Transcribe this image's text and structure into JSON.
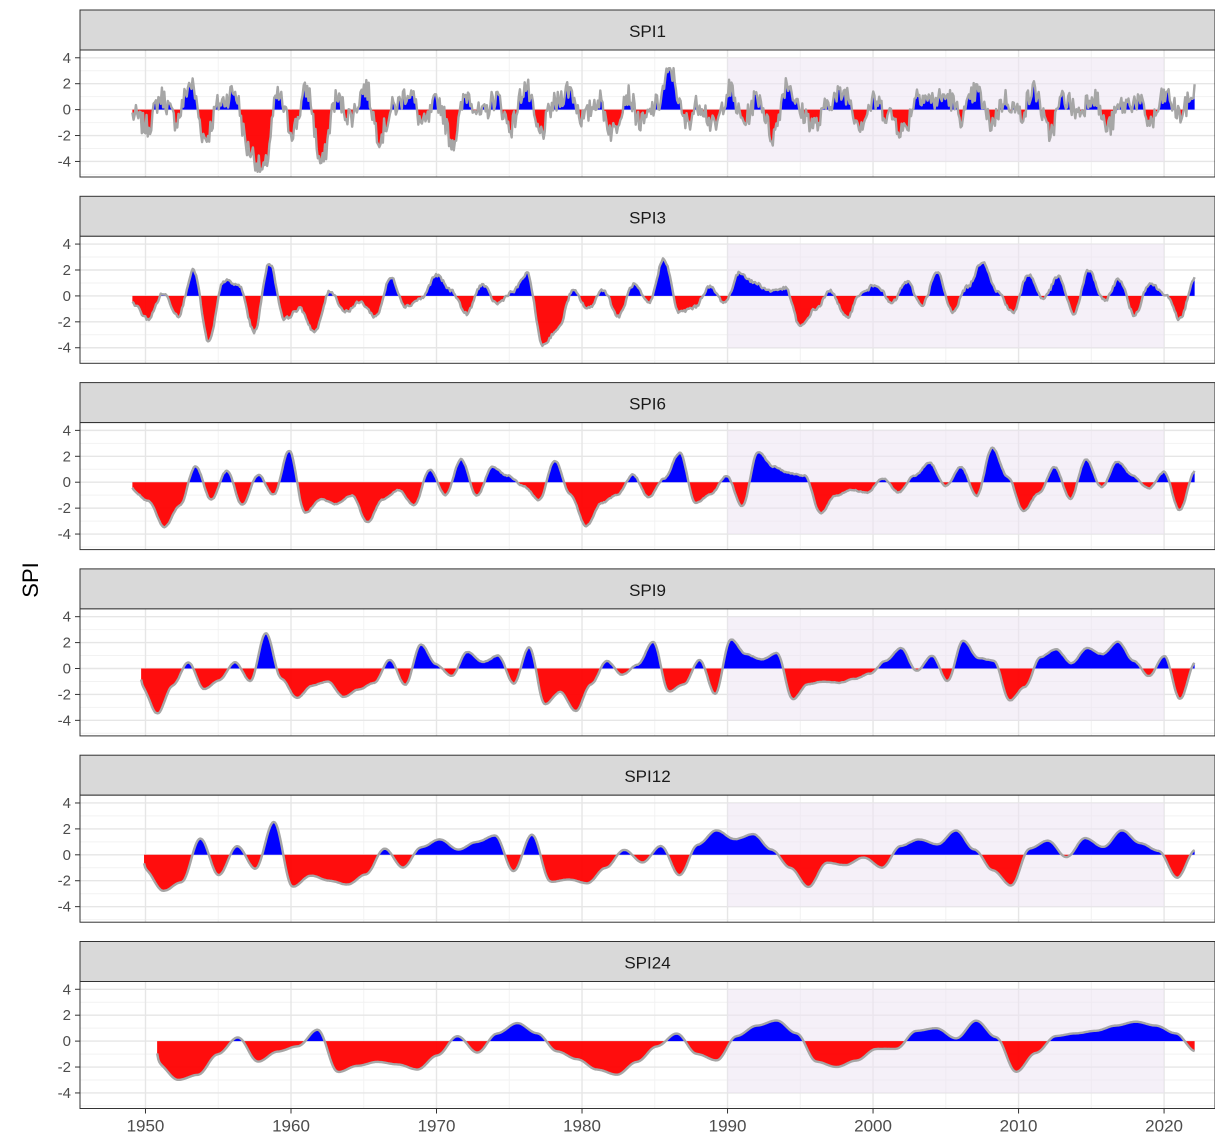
{
  "chart_data": {
    "type": "area",
    "ylabel": "SPI",
    "xlabel": "",
    "xlim": [
      1945.5,
      2023.5
    ],
    "ylim": [
      -5.2,
      4.6
    ],
    "x_ticks": [
      1950,
      1960,
      1970,
      1980,
      1990,
      2000,
      2010,
      2020
    ],
    "x_tick_labels": [
      "1950",
      "1960",
      "1970",
      "1980",
      "1990",
      "2000",
      "2010",
      "2020"
    ],
    "y_ticks": [
      -4,
      -2,
      0,
      2,
      4
    ],
    "y_tick_labels": [
      "-4",
      "-2",
      "0",
      "2",
      "4"
    ],
    "grid": true,
    "highlight_period": {
      "x": [
        1990,
        2020
      ],
      "y": [
        -4,
        4
      ],
      "color": "#ece4f2"
    },
    "colors": {
      "positive": "#0000ff",
      "negative": "#ff0000",
      "line": "#a6a6a6",
      "strip": "#d9d9d9",
      "highlight": "#ece4f2"
    },
    "panels": [
      {
        "name": "SPI1",
        "start": 1949.1,
        "end": 2022.1,
        "values": [
          -0.4,
          -1.3,
          1.0,
          -0.8,
          2.0,
          -2.2,
          0.5,
          1.4,
          -3.1,
          -4.8,
          1.0,
          -1.6,
          1.5,
          -4.2,
          0.8,
          -0.5,
          1.7,
          -2.0,
          0.2,
          1.4,
          -1.2,
          0.6,
          -2.4,
          1.2,
          -0.5,
          0.9,
          -1.3,
          1.8,
          -1.9,
          0.4,
          1.6,
          -0.7,
          0.8,
          -1.7,
          1.2,
          -1.1,
          0.3,
          3.0,
          -1.0,
          0.5,
          -1.4,
          1.5,
          -0.9,
          1.0,
          -2.0,
          2.1,
          -0.3,
          -1.2,
          0.8,
          1.3,
          -1.0,
          0.6,
          -0.4,
          -1.6,
          1.3,
          0.7,
          1.0,
          -0.5,
          1.4,
          -1.0,
          0.8,
          -0.3,
          1.5,
          -1.8,
          0.9,
          -0.2,
          1.2,
          -1.4,
          0.3,
          0.7,
          -1.0,
          1.1,
          -0.4,
          1.3
        ]
      },
      {
        "name": "SPI3",
        "start": 1949.1,
        "end": 2022.1,
        "values": [
          -0.6,
          -1.8,
          0.2,
          -1.5,
          2.0,
          -3.6,
          1.2,
          0.8,
          -2.8,
          2.6,
          -1.8,
          -1.0,
          -2.8,
          0.4,
          -1.2,
          -0.5,
          -1.6,
          1.4,
          -0.8,
          -0.2,
          1.6,
          0.4,
          -1.4,
          0.9,
          -0.6,
          0.3,
          1.7,
          -3.8,
          -2.6,
          0.4,
          -1.0,
          0.5,
          -1.6,
          0.9,
          -0.6,
          2.9,
          -1.3,
          -0.9,
          0.7,
          -0.5,
          1.8,
          1.0,
          0.4,
          0.6,
          -2.4,
          -1.0,
          0.4,
          -1.7,
          0.2,
          0.9,
          -0.6,
          1.1,
          -0.7,
          1.8,
          -1.2,
          0.7,
          2.7,
          0.3,
          -1.3,
          1.7,
          -0.2,
          1.5,
          -1.4,
          2.0,
          -0.4,
          1.3,
          -1.5,
          1.0,
          0.2,
          -1.8,
          1.4
        ]
      },
      {
        "name": "SPI6",
        "start": 1949.1,
        "end": 2022.1,
        "values": [
          -0.7,
          -1.5,
          -3.5,
          -1.8,
          1.3,
          -1.4,
          0.9,
          -1.8,
          0.6,
          -1.0,
          2.5,
          -2.4,
          -1.3,
          -1.7,
          -1.0,
          -3.1,
          -1.3,
          -0.6,
          -1.8,
          1.0,
          -1.0,
          1.8,
          -1.1,
          1.2,
          0.5,
          -0.3,
          -1.4,
          1.7,
          -1.0,
          -3.4,
          -1.6,
          -1.0,
          0.6,
          -1.2,
          0.3,
          2.3,
          -1.6,
          -0.9,
          0.5,
          -1.9,
          2.4,
          1.2,
          0.7,
          0.5,
          -2.4,
          -1.0,
          -0.6,
          -0.8,
          0.3,
          -0.8,
          0.5,
          1.5,
          -0.3,
          1.2,
          -1.1,
          2.7,
          0.4,
          -2.3,
          -0.8,
          1.2,
          -1.3,
          1.8,
          -0.4,
          1.6,
          0.5,
          -0.5,
          0.8,
          -2.2,
          0.9
        ]
      },
      {
        "name": "SPI9",
        "start": 1949.7,
        "end": 2022.1,
        "values": [
          -1.5,
          -3.5,
          -1.3,
          0.5,
          -1.6,
          -0.9,
          0.5,
          -1.0,
          2.8,
          -0.8,
          -2.3,
          -1.3,
          -1.0,
          -2.2,
          -1.6,
          -1.1,
          0.7,
          -1.3,
          1.9,
          0.3,
          -0.6,
          1.3,
          0.5,
          1.0,
          -1.2,
          1.7,
          -2.8,
          -1.8,
          -3.3,
          -1.2,
          0.6,
          -0.5,
          0.3,
          2.1,
          -1.8,
          -1.2,
          0.7,
          -2.0,
          2.3,
          1.1,
          0.7,
          1.2,
          -2.4,
          -1.2,
          -1.0,
          -1.1,
          -0.8,
          -0.4,
          0.6,
          1.6,
          -0.2,
          1.0,
          -1.0,
          2.2,
          0.8,
          0.6,
          -2.5,
          -1.4,
          0.9,
          1.5,
          0.4,
          1.6,
          1.1,
          2.1,
          0.6,
          -0.6,
          1.0,
          -2.4,
          0.5
        ]
      },
      {
        "name": "SPI12",
        "start": 1949.9,
        "end": 2022.1,
        "values": [
          -1.2,
          -2.8,
          -2.1,
          1.3,
          -1.6,
          0.7,
          -1.1,
          2.6,
          -2.5,
          -1.6,
          -2.0,
          -2.3,
          -1.5,
          0.5,
          -1.0,
          0.6,
          1.2,
          0.4,
          1.0,
          1.5,
          -1.3,
          1.6,
          -2.1,
          -1.9,
          -2.2,
          -1.0,
          0.4,
          -0.6,
          0.7,
          -1.6,
          0.8,
          1.9,
          1.2,
          1.6,
          0.4,
          -1.0,
          -2.5,
          -0.6,
          -0.8,
          -0.2,
          -1.0,
          0.7,
          1.2,
          0.8,
          1.9,
          0.4,
          -1.2,
          -2.4,
          0.5,
          1.1,
          -0.2,
          1.3,
          0.6,
          1.9,
          0.9,
          0.3,
          -1.8,
          0.4
        ]
      },
      {
        "name": "SPI24",
        "start": 1950.8,
        "end": 2022.1,
        "values": [
          -1.8,
          -3.0,
          -2.6,
          -1.0,
          0.3,
          -1.6,
          -0.8,
          -0.4,
          0.9,
          -2.4,
          -1.9,
          -1.6,
          -1.8,
          -2.2,
          -1.1,
          0.4,
          -0.9,
          0.6,
          1.4,
          0.6,
          -0.8,
          -1.4,
          -2.2,
          -2.6,
          -1.6,
          -0.4,
          0.6,
          -1.0,
          -1.5,
          0.4,
          1.2,
          1.6,
          0.6,
          -1.6,
          -2.0,
          -1.5,
          -0.6,
          -0.6,
          0.8,
          1.0,
          0.2,
          1.6,
          0.3,
          -2.4,
          -0.9,
          0.4,
          0.6,
          0.8,
          1.2,
          1.5,
          1.2,
          0.6,
          -0.8
        ]
      }
    ]
  }
}
